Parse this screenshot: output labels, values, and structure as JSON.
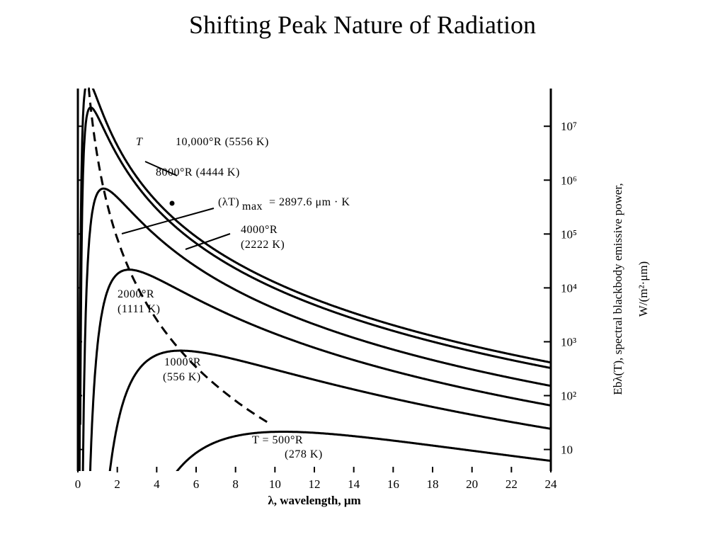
{
  "title": "Shifting Peak Nature of Radiation",
  "chart_data": {
    "type": "line",
    "xlabel": "λ, wavelength, μm",
    "ylabel_line1": "Ebλ(T), spectral blackbody emissive power,",
    "ylabel_line2": "W/(m²·μm)",
    "xlim": [
      0,
      24
    ],
    "ylim_log10": [
      0.6,
      7.7
    ],
    "y_scale": "log",
    "x_ticks": [
      0,
      2,
      4,
      6,
      8,
      10,
      12,
      14,
      16,
      18,
      20,
      22,
      24
    ],
    "y_ticks": [
      {
        "value": 1,
        "label": "10"
      },
      {
        "value": 2,
        "label": "10²"
      },
      {
        "value": 3,
        "label": "10³"
      },
      {
        "value": 4,
        "label": "10⁴"
      },
      {
        "value": 5,
        "label": "10⁵"
      },
      {
        "value": 6,
        "label": "10⁶"
      },
      {
        "value": 7,
        "label": "10⁷"
      }
    ],
    "series": [
      {
        "name": "T = 10,000°R (5556 K)",
        "temperature_K": 5556
      },
      {
        "name": "8000°R (4444 K)",
        "temperature_K": 4444
      },
      {
        "name": "4000°R (2222 K)",
        "temperature_K": 2222
      },
      {
        "name": "2000°R (1111 K)",
        "temperature_K": 1111
      },
      {
        "name": "1000°R (556 K)",
        "temperature_K": 556
      },
      {
        "name": "T = 500°R (278 K)",
        "temperature_K": 278
      }
    ],
    "peak_locus": {
      "label": "(λT)max = 2897.6 μm·K",
      "lambdaT_max": 2897.6
    },
    "annotations": {
      "t10000_a": "T",
      "t10000_b": "10,000°R (5556 K)",
      "t8000": "8000°R (4444 K)",
      "wien_a": "(λT)",
      "wien_sub": "max",
      "wien_b": "= 2897.6 μm · K",
      "t4000_a": "4000°R",
      "t4000_b": "(2222 K)",
      "t2000_a": "2000°R",
      "t2000_b": "(1111 K)",
      "t1000_a": "1000°R",
      "t1000_b": "(556 K)",
      "t500_a": "T = 500°R",
      "t500_b": "(278 K)"
    }
  }
}
